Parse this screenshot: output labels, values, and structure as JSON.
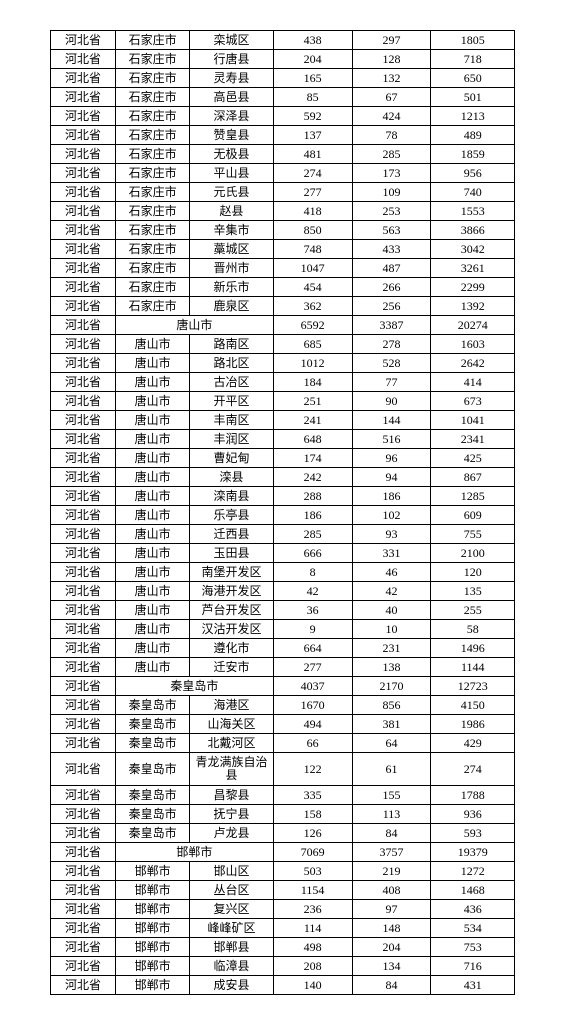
{
  "colors": {
    "background": "#ffffff",
    "border": "#000000",
    "text": "#000000"
  },
  "typography": {
    "font_family": "SimSun",
    "font_size_pt": 9
  },
  "table": {
    "type": "table",
    "column_widths_pct": [
      14,
      16,
      18,
      17,
      17,
      18
    ],
    "rows": [
      {
        "c1": "河北省",
        "c2": "石家庄市",
        "c3": "栾城区",
        "c4": 438,
        "c5": 297,
        "c6": 1805
      },
      {
        "c1": "河北省",
        "c2": "石家庄市",
        "c3": "行唐县",
        "c4": 204,
        "c5": 128,
        "c6": 718
      },
      {
        "c1": "河北省",
        "c2": "石家庄市",
        "c3": "灵寿县",
        "c4": 165,
        "c5": 132,
        "c6": 650
      },
      {
        "c1": "河北省",
        "c2": "石家庄市",
        "c3": "高邑县",
        "c4": 85,
        "c5": 67,
        "c6": 501
      },
      {
        "c1": "河北省",
        "c2": "石家庄市",
        "c3": "深泽县",
        "c4": 592,
        "c5": 424,
        "c6": 1213
      },
      {
        "c1": "河北省",
        "c2": "石家庄市",
        "c3": "赞皇县",
        "c4": 137,
        "c5": 78,
        "c6": 489
      },
      {
        "c1": "河北省",
        "c2": "石家庄市",
        "c3": "无极县",
        "c4": 481,
        "c5": 285,
        "c6": 1859
      },
      {
        "c1": "河北省",
        "c2": "石家庄市",
        "c3": "平山县",
        "c4": 274,
        "c5": 173,
        "c6": 956
      },
      {
        "c1": "河北省",
        "c2": "石家庄市",
        "c3": "元氏县",
        "c4": 277,
        "c5": 109,
        "c6": 740
      },
      {
        "c1": "河北省",
        "c2": "石家庄市",
        "c3": "赵县",
        "c4": 418,
        "c5": 253,
        "c6": 1553
      },
      {
        "c1": "河北省",
        "c2": "石家庄市",
        "c3": "辛集市",
        "c4": 850,
        "c5": 563,
        "c6": 3866
      },
      {
        "c1": "河北省",
        "c2": "石家庄市",
        "c3": "藁城区",
        "c4": 748,
        "c5": 433,
        "c6": 3042
      },
      {
        "c1": "河北省",
        "c2": "石家庄市",
        "c3": "晋州市",
        "c4": 1047,
        "c5": 487,
        "c6": 3261
      },
      {
        "c1": "河北省",
        "c2": "石家庄市",
        "c3": "新乐市",
        "c4": 454,
        "c5": 266,
        "c6": 2299
      },
      {
        "c1": "河北省",
        "c2": "石家庄市",
        "c3": "鹿泉区",
        "c4": 362,
        "c5": 256,
        "c6": 1392
      },
      {
        "c1": "河北省",
        "span": "唐山市",
        "c4": 6592,
        "c5": 3387,
        "c6": 20274
      },
      {
        "c1": "河北省",
        "c2": "唐山市",
        "c3": "路南区",
        "c4": 685,
        "c5": 278,
        "c6": 1603
      },
      {
        "c1": "河北省",
        "c2": "唐山市",
        "c3": "路北区",
        "c4": 1012,
        "c5": 528,
        "c6": 2642
      },
      {
        "c1": "河北省",
        "c2": "唐山市",
        "c3": "古冶区",
        "c4": 184,
        "c5": 77,
        "c6": 414
      },
      {
        "c1": "河北省",
        "c2": "唐山市",
        "c3": "开平区",
        "c4": 251,
        "c5": 90,
        "c6": 673
      },
      {
        "c1": "河北省",
        "c2": "唐山市",
        "c3": "丰南区",
        "c4": 241,
        "c5": 144,
        "c6": 1041
      },
      {
        "c1": "河北省",
        "c2": "唐山市",
        "c3": "丰润区",
        "c4": 648,
        "c5": 516,
        "c6": 2341
      },
      {
        "c1": "河北省",
        "c2": "唐山市",
        "c3": "曹妃甸",
        "c4": 174,
        "c5": 96,
        "c6": 425
      },
      {
        "c1": "河北省",
        "c2": "唐山市",
        "c3": "滦县",
        "c4": 242,
        "c5": 94,
        "c6": 867
      },
      {
        "c1": "河北省",
        "c2": "唐山市",
        "c3": "滦南县",
        "c4": 288,
        "c5": 186,
        "c6": 1285
      },
      {
        "c1": "河北省",
        "c2": "唐山市",
        "c3": "乐亭县",
        "c4": 186,
        "c5": 102,
        "c6": 609
      },
      {
        "c1": "河北省",
        "c2": "唐山市",
        "c3": "迁西县",
        "c4": 285,
        "c5": 93,
        "c6": 755
      },
      {
        "c1": "河北省",
        "c2": "唐山市",
        "c3": "玉田县",
        "c4": 666,
        "c5": 331,
        "c6": 2100
      },
      {
        "c1": "河北省",
        "c2": "唐山市",
        "c3": "南堡开发区",
        "c4": 8,
        "c5": 46,
        "c6": 120
      },
      {
        "c1": "河北省",
        "c2": "唐山市",
        "c3": "海港开发区",
        "c4": 42,
        "c5": 42,
        "c6": 135
      },
      {
        "c1": "河北省",
        "c2": "唐山市",
        "c3": "芦台开发区",
        "c4": 36,
        "c5": 40,
        "c6": 255
      },
      {
        "c1": "河北省",
        "c2": "唐山市",
        "c3": "汉沽开发区",
        "c4": 9,
        "c5": 10,
        "c6": 58
      },
      {
        "c1": "河北省",
        "c2": "唐山市",
        "c3": "遵化市",
        "c4": 664,
        "c5": 231,
        "c6": 1496
      },
      {
        "c1": "河北省",
        "c2": "唐山市",
        "c3": "迁安市",
        "c4": 277,
        "c5": 138,
        "c6": 1144
      },
      {
        "c1": "河北省",
        "span": "秦皇岛市",
        "c4": 4037,
        "c5": 2170,
        "c6": 12723
      },
      {
        "c1": "河北省",
        "c2": "秦皇岛市",
        "c3": "海港区",
        "c4": 1670,
        "c5": 856,
        "c6": 4150
      },
      {
        "c1": "河北省",
        "c2": "秦皇岛市",
        "c3": "山海关区",
        "c4": 494,
        "c5": 381,
        "c6": 1986
      },
      {
        "c1": "河北省",
        "c2": "秦皇岛市",
        "c3": "北戴河区",
        "c4": 66,
        "c5": 64,
        "c6": 429
      },
      {
        "c1": "河北省",
        "c2": "秦皇岛市",
        "c3": "青龙满族自治县",
        "tall": true,
        "c4": 122,
        "c5": 61,
        "c6": 274
      },
      {
        "c1": "河北省",
        "c2": "秦皇岛市",
        "c3": "昌黎县",
        "c4": 335,
        "c5": 155,
        "c6": 1788
      },
      {
        "c1": "河北省",
        "c2": "秦皇岛市",
        "c3": "抚宁县",
        "c4": 158,
        "c5": 113,
        "c6": 936
      },
      {
        "c1": "河北省",
        "c2": "秦皇岛市",
        "c3": "卢龙县",
        "c4": 126,
        "c5": 84,
        "c6": 593
      },
      {
        "c1": "河北省",
        "span": "邯郸市",
        "c4": 7069,
        "c5": 3757,
        "c6": 19379
      },
      {
        "c1": "河北省",
        "c2": "邯郸市",
        "c3": "邯山区",
        "c4": 503,
        "c5": 219,
        "c6": 1272
      },
      {
        "c1": "河北省",
        "c2": "邯郸市",
        "c3": "丛台区",
        "c4": 1154,
        "c5": 408,
        "c6": 1468
      },
      {
        "c1": "河北省",
        "c2": "邯郸市",
        "c3": "复兴区",
        "c4": 236,
        "c5": 97,
        "c6": 436
      },
      {
        "c1": "河北省",
        "c2": "邯郸市",
        "c3": "峰峰矿区",
        "c4": 114,
        "c5": 148,
        "c6": 534
      },
      {
        "c1": "河北省",
        "c2": "邯郸市",
        "c3": "邯郸县",
        "c4": 498,
        "c5": 204,
        "c6": 753
      },
      {
        "c1": "河北省",
        "c2": "邯郸市",
        "c3": "临漳县",
        "c4": 208,
        "c5": 134,
        "c6": 716
      },
      {
        "c1": "河北省",
        "c2": "邯郸市",
        "c3": "成安县",
        "c4": 140,
        "c5": 84,
        "c6": 431
      }
    ]
  }
}
